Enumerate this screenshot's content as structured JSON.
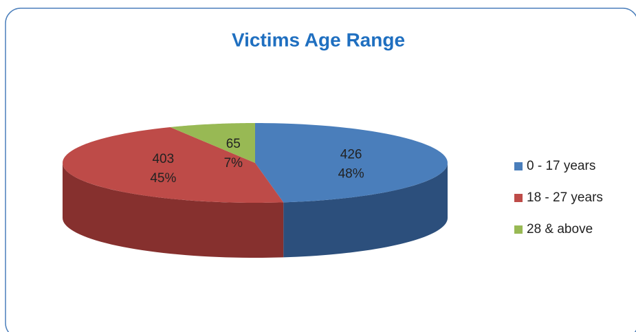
{
  "chart_data": {
    "type": "pie3d",
    "title": "Victims Age Range",
    "categories": [
      "0 - 17 years",
      "18 - 27 years",
      "28 & above"
    ],
    "values": [
      426,
      403,
      65
    ],
    "percent_labels": [
      "48%",
      "45%",
      "7%"
    ],
    "colors": [
      "#4a7ebb",
      "#be4b48",
      "#98b954"
    ],
    "side_colors": [
      "#2c4f7c",
      "#86302e",
      "#6b8a35"
    ],
    "legend": "right"
  }
}
